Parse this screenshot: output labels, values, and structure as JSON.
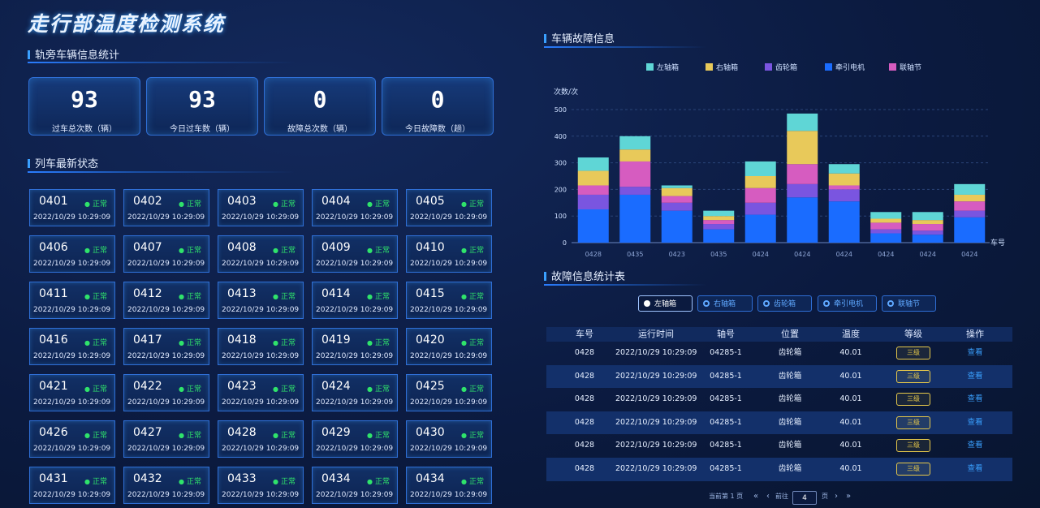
{
  "app_title": "走行部温度检测系统",
  "sections": {
    "stats": "轨旁车辆信息统计",
    "trains": "列车最新状态",
    "faults_chart": "车辆故障信息",
    "faults_table": "故障信息统计表"
  },
  "stats": [
    {
      "value": "93",
      "label": "过车总次数（辆）"
    },
    {
      "value": "93",
      "label": "今日过车数（辆）"
    },
    {
      "value": "0",
      "label": "故障总次数（辆）"
    },
    {
      "value": "0",
      "label": "今日故障数（趟）"
    }
  ],
  "train_status_label": "正常",
  "train_time": "2022/10/29  10:29:09",
  "trains": [
    "0401",
    "0402",
    "0403",
    "0404",
    "0405",
    "0406",
    "0407",
    "0408",
    "0409",
    "0410",
    "0411",
    "0412",
    "0413",
    "0414",
    "0415",
    "0416",
    "0417",
    "0418",
    "0419",
    "0420",
    "0421",
    "0422",
    "0423",
    "0424",
    "0425",
    "0426",
    "0427",
    "0428",
    "0429",
    "0430",
    "0431",
    "0432",
    "0433",
    "0434",
    "0434"
  ],
  "chart_data": {
    "type": "bar",
    "stacked": true,
    "ylabel": "次数/次",
    "xlabel": "车号",
    "ylim": [
      0,
      500
    ],
    "yticks": [
      0,
      100,
      200,
      300,
      400,
      500
    ],
    "categories": [
      "0428",
      "0435",
      "0423",
      "0435",
      "0424",
      "0424",
      "0424",
      "0424",
      "0424",
      "0424"
    ],
    "series": [
      {
        "name": "牵引电机",
        "color": "#1a6cff",
        "values": [
          125,
          180,
          120,
          50,
          105,
          170,
          155,
          35,
          30,
          95
        ]
      },
      {
        "name": "齿轮箱",
        "color": "#7a55e0",
        "values": [
          55,
          30,
          30,
          20,
          45,
          50,
          45,
          15,
          15,
          25
        ]
      },
      {
        "name": "联轴节",
        "color": "#d65cc0",
        "values": [
          35,
          95,
          25,
          15,
          55,
          75,
          15,
          25,
          25,
          35
        ]
      },
      {
        "name": "右轴箱",
        "color": "#e8c95a",
        "values": [
          55,
          45,
          30,
          15,
          45,
          125,
          45,
          15,
          15,
          25
        ]
      },
      {
        "name": "左轴箱",
        "color": "#5fd6d6",
        "values": [
          50,
          50,
          10,
          20,
          55,
          65,
          35,
          25,
          30,
          40
        ]
      }
    ],
    "legend": [
      "左轴箱",
      "右轴箱",
      "齿轮箱",
      "牵引电机",
      "联轴节"
    ],
    "legend_position": "top"
  },
  "legend_colors": {
    "左轴箱": "#5fd6d6",
    "右轴箱": "#e8c95a",
    "齿轮箱": "#7a55e0",
    "牵引电机": "#1a6cff",
    "联轴节": "#d65cc0"
  },
  "filter_tabs": [
    "左轴箱",
    "右轴箱",
    "齿轮箱",
    "牵引电机",
    "联轴节"
  ],
  "table": {
    "headers": [
      "车号",
      "运行时间",
      "轴号",
      "位置",
      "温度",
      "等级",
      "操作"
    ],
    "rows": [
      [
        "0428",
        "2022/10/29  10:29:09",
        "04285-1",
        "齿轮箱",
        "40.01",
        "三级",
        "查看"
      ],
      [
        "0428",
        "2022/10/29  10:29:09",
        "04285-1",
        "齿轮箱",
        "40.01",
        "三级",
        "查看"
      ],
      [
        "0428",
        "2022/10/29  10:29:09",
        "04285-1",
        "齿轮箱",
        "40.01",
        "三级",
        "查看"
      ],
      [
        "0428",
        "2022/10/29  10:29:09",
        "04285-1",
        "齿轮箱",
        "40.01",
        "三级",
        "查看"
      ],
      [
        "0428",
        "2022/10/29  10:29:09",
        "04285-1",
        "齿轮箱",
        "40.01",
        "三级",
        "查看"
      ],
      [
        "0428",
        "2022/10/29  10:29:09",
        "04285-1",
        "齿轮箱",
        "40.01",
        "三级",
        "查看"
      ]
    ]
  },
  "pager": {
    "current": "当前第 1 页",
    "first": "«",
    "prev": "‹",
    "goto": "前往",
    "page": "4",
    "unit": "页",
    "next": "›",
    "last": "»"
  }
}
